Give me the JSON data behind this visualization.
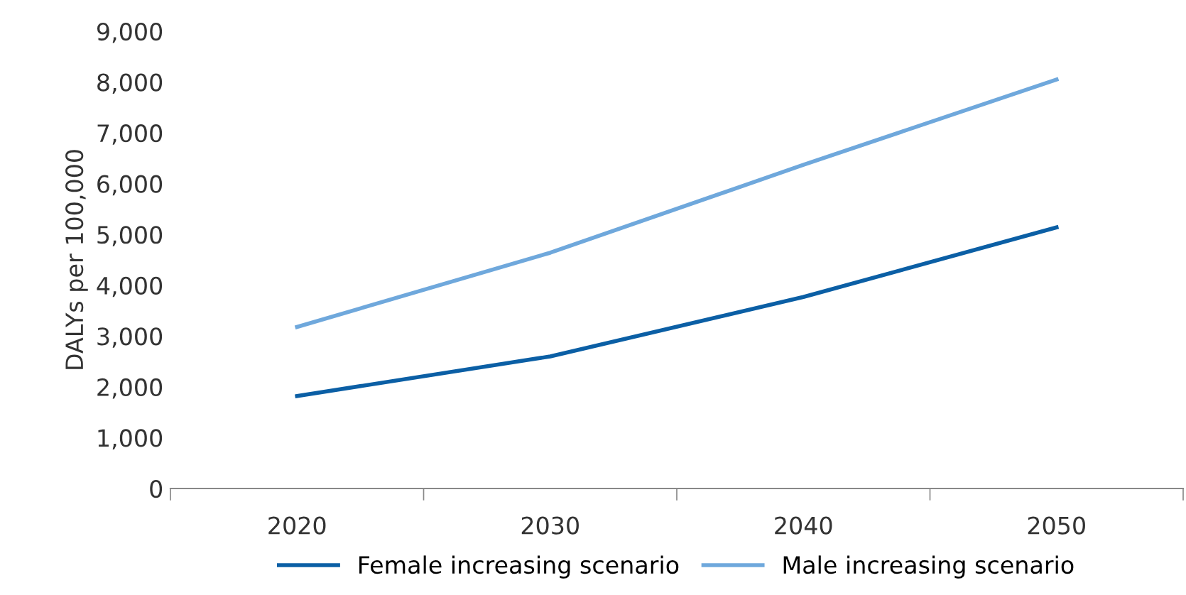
{
  "chart_data": {
    "type": "line",
    "ylabel": "DALYs per 100,000",
    "categories": [
      "2020",
      "2030",
      "2040",
      "2050"
    ],
    "series": [
      {
        "name": "Female increasing scenario",
        "color": "#0b5fa5",
        "values": [
          1820,
          2600,
          3770,
          5140
        ]
      },
      {
        "name": "Male increasing scenario",
        "color": "#6fa8dc",
        "values": [
          3180,
          4640,
          6370,
          8050
        ]
      }
    ],
    "ylim": [
      0,
      9000
    ],
    "yticks": [
      0,
      {
        "value": 1000,
        "label": "1,000"
      },
      {
        "value": 2000,
        "label": "2,000"
      },
      {
        "value": 3000,
        "label": "3,000"
      },
      {
        "value": 4000,
        "label": "4,000"
      },
      {
        "value": 5000,
        "label": "5,000"
      },
      {
        "value": 6000,
        "label": "6,000"
      },
      {
        "value": 7000,
        "label": "7,000"
      },
      {
        "value": 8000,
        "label": "8,000"
      },
      {
        "value": 9000,
        "label": "9,000"
      }
    ],
    "grid": false,
    "legend": "bottom",
    "marker": "none",
    "line_style": "solid"
  }
}
